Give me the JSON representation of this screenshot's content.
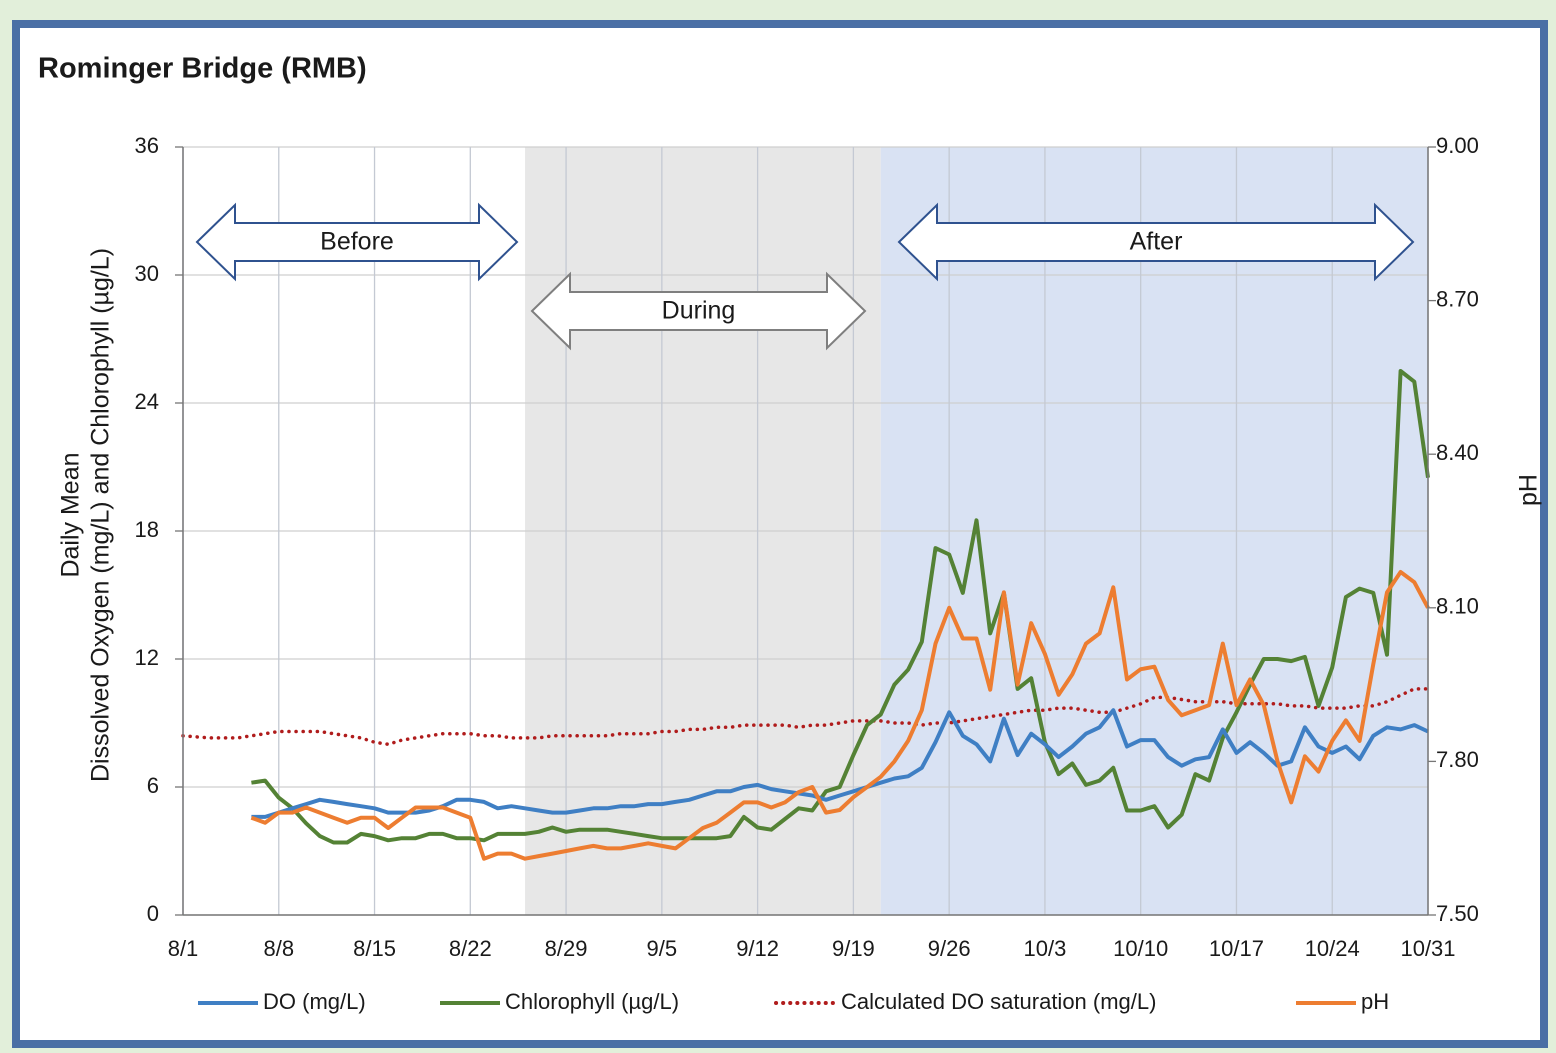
{
  "chart_data": {
    "type": "line",
    "title": "Rominger Bridge (RMB)",
    "y_label_lines": [
      "Daily Mean",
      "Dissolved Oxygen (mg/L) and Chlorophyll (µg/L)"
    ],
    "y2_label": "pH",
    "x": [
      "8/1",
      "8/2",
      "8/3",
      "8/4",
      "8/5",
      "8/6",
      "8/7",
      "8/8",
      "8/9",
      "8/10",
      "8/11",
      "8/12",
      "8/13",
      "8/14",
      "8/15",
      "8/16",
      "8/17",
      "8/18",
      "8/19",
      "8/20",
      "8/21",
      "8/22",
      "8/23",
      "8/24",
      "8/25",
      "8/26",
      "8/27",
      "8/28",
      "8/29",
      "8/30",
      "8/31",
      "9/1",
      "9/2",
      "9/3",
      "9/4",
      "9/5",
      "9/6",
      "9/7",
      "9/8",
      "9/9",
      "9/10",
      "9/11",
      "9/12",
      "9/13",
      "9/14",
      "9/15",
      "9/16",
      "9/17",
      "9/18",
      "9/19",
      "9/20",
      "9/21",
      "9/22",
      "9/23",
      "9/24",
      "9/25",
      "9/26",
      "9/27",
      "9/28",
      "9/29",
      "9/30",
      "10/1",
      "10/2",
      "10/3",
      "10/4",
      "10/5",
      "10/6",
      "10/7",
      "10/8",
      "10/9",
      "10/10",
      "10/11",
      "10/12",
      "10/13",
      "10/14",
      "10/15",
      "10/16",
      "10/17",
      "10/18",
      "10/19",
      "10/20",
      "10/21",
      "10/22",
      "10/23",
      "10/24",
      "10/25",
      "10/26",
      "10/27",
      "10/28",
      "10/29",
      "10/30",
      "10/31"
    ],
    "xlim": [
      "8/1",
      "10/31"
    ],
    "xticks": [
      "8/1",
      "8/8",
      "8/15",
      "8/22",
      "8/29",
      "9/5",
      "9/12",
      "9/19",
      "9/26",
      "10/3",
      "10/10",
      "10/17",
      "10/24",
      "10/31"
    ],
    "ylim": [
      0,
      36
    ],
    "yticks": [
      0,
      6,
      12,
      18,
      24,
      30,
      36
    ],
    "y2lim": [
      7.5,
      9.0
    ],
    "y2ticks": [
      {
        "value": 7.5,
        "label": "7.50"
      },
      {
        "value": 7.8,
        "label": "7.80"
      },
      {
        "value": 8.1,
        "label": "8.10"
      },
      {
        "value": 8.4,
        "label": "8.40"
      },
      {
        "value": 8.7,
        "label": "8.70"
      },
      {
        "value": 9.0,
        "label": "9.00"
      }
    ],
    "grid": true,
    "legend": "bottom",
    "phases": [
      {
        "label": "Before"
      },
      {
        "label": "During",
        "start": "8/26",
        "end": "9/21",
        "color": "#e7e7e7"
      },
      {
        "label": "After",
        "start": "9/21",
        "end": "10/31",
        "color": "#d9e2f3"
      }
    ],
    "series": [
      {
        "name": "DO (mg/L)",
        "color": "#3f7fc4",
        "style": "solid",
        "values": [
          null,
          null,
          null,
          null,
          null,
          4.6,
          4.6,
          4.8,
          5.0,
          5.2,
          5.4,
          5.3,
          5.2,
          5.1,
          5.0,
          4.8,
          4.8,
          4.8,
          4.9,
          5.1,
          5.4,
          5.4,
          5.3,
          5.0,
          5.1,
          5.0,
          4.9,
          4.8,
          4.8,
          4.9,
          5.0,
          5.0,
          5.1,
          5.1,
          5.2,
          5.2,
          5.3,
          5.4,
          5.6,
          5.8,
          5.8,
          6.0,
          6.1,
          5.9,
          5.8,
          5.7,
          5.6,
          5.4,
          5.6,
          5.8,
          6.0,
          6.2,
          6.4,
          6.5,
          6.9,
          8.1,
          9.5,
          8.4,
          8.0,
          7.2,
          9.2,
          7.5,
          8.5,
          8.0,
          7.4,
          7.9,
          8.5,
          8.8,
          9.6,
          7.9,
          8.2,
          8.2,
          7.4,
          7.0,
          7.3,
          7.4,
          8.7,
          7.6,
          8.1,
          7.6,
          7.0,
          7.2,
          8.8,
          7.9,
          7.6,
          7.9,
          7.3,
          8.4,
          8.8,
          8.7,
          8.9,
          8.6
        ]
      },
      {
        "name": "Chlorophyll (µg/L)",
        "color": "#548235",
        "style": "solid",
        "values": [
          null,
          null,
          null,
          null,
          null,
          6.2,
          6.3,
          5.5,
          5.0,
          4.3,
          3.7,
          3.4,
          3.4,
          3.8,
          3.7,
          3.5,
          3.6,
          3.6,
          3.8,
          3.8,
          3.6,
          3.6,
          3.5,
          3.8,
          3.8,
          3.8,
          3.9,
          4.1,
          3.9,
          4.0,
          4.0,
          4.0,
          3.9,
          3.8,
          3.7,
          3.6,
          3.6,
          3.6,
          3.6,
          3.6,
          3.7,
          4.6,
          4.1,
          4.0,
          4.5,
          5.0,
          4.9,
          5.8,
          6.0,
          7.5,
          8.9,
          9.4,
          10.8,
          11.5,
          12.8,
          17.2,
          16.9,
          15.1,
          18.5,
          13.2,
          15.1,
          10.6,
          11.1,
          8.1,
          6.6,
          7.1,
          6.1,
          6.3,
          6.9,
          4.9,
          4.9,
          5.1,
          4.1,
          4.7,
          6.6,
          6.3,
          8.3,
          9.5,
          10.8,
          12.0,
          12.0,
          11.9,
          12.1,
          9.8,
          11.6,
          14.9,
          15.3,
          15.1,
          12.2,
          25.5,
          25.0,
          20.5
        ]
      },
      {
        "name": "Calculated DO saturation (mg/L)",
        "color": "#b01c1c",
        "style": "dotted",
        "values": [
          8.4,
          8.35,
          8.3,
          8.3,
          8.3,
          8.4,
          8.5,
          8.6,
          8.6,
          8.6,
          8.6,
          8.5,
          8.4,
          8.3,
          8.1,
          8.0,
          8.2,
          8.3,
          8.4,
          8.5,
          8.5,
          8.5,
          8.4,
          8.4,
          8.3,
          8.3,
          8.3,
          8.4,
          8.4,
          8.4,
          8.4,
          8.4,
          8.5,
          8.5,
          8.5,
          8.6,
          8.6,
          8.7,
          8.7,
          8.8,
          8.8,
          8.9,
          8.9,
          8.9,
          8.9,
          8.8,
          8.9,
          8.9,
          9.0,
          9.1,
          9.1,
          9.1,
          9.0,
          9.0,
          8.9,
          9.0,
          9.0,
          9.1,
          9.2,
          9.3,
          9.4,
          9.5,
          9.6,
          9.6,
          9.7,
          9.7,
          9.6,
          9.5,
          9.5,
          9.7,
          9.9,
          10.2,
          10.2,
          10.1,
          10.0,
          10.0,
          10.0,
          9.9,
          9.9,
          9.9,
          9.9,
          9.8,
          9.8,
          9.7,
          9.7,
          9.7,
          9.8,
          9.8,
          10.0,
          10.3,
          10.6,
          10.6
        ]
      },
      {
        "name": "pH",
        "color": "#ed7d31",
        "style": "solid",
        "axis": "y2",
        "values": [
          null,
          null,
          null,
          null,
          null,
          7.69,
          7.68,
          7.7,
          7.7,
          7.71,
          7.7,
          7.69,
          7.68,
          7.69,
          7.69,
          7.67,
          7.69,
          7.71,
          7.71,
          7.71,
          7.7,
          7.69,
          7.61,
          7.62,
          7.62,
          7.61,
          7.615,
          7.62,
          7.625,
          7.63,
          7.635,
          7.63,
          7.63,
          7.635,
          7.64,
          7.635,
          7.63,
          7.65,
          7.67,
          7.68,
          7.7,
          7.72,
          7.72,
          7.71,
          7.72,
          7.74,
          7.75,
          7.7,
          7.705,
          7.73,
          7.75,
          7.77,
          7.8,
          7.84,
          7.9,
          8.03,
          8.1,
          8.04,
          8.04,
          7.94,
          8.13,
          7.95,
          8.07,
          8.01,
          7.93,
          7.97,
          8.03,
          8.05,
          8.14,
          7.96,
          7.98,
          7.985,
          7.92,
          7.89,
          7.9,
          7.91,
          8.03,
          7.91,
          7.96,
          7.91,
          7.8,
          7.72,
          7.81,
          7.78,
          7.84,
          7.88,
          7.84,
          7.99,
          8.13,
          8.17,
          8.15,
          8.1
        ]
      }
    ]
  }
}
